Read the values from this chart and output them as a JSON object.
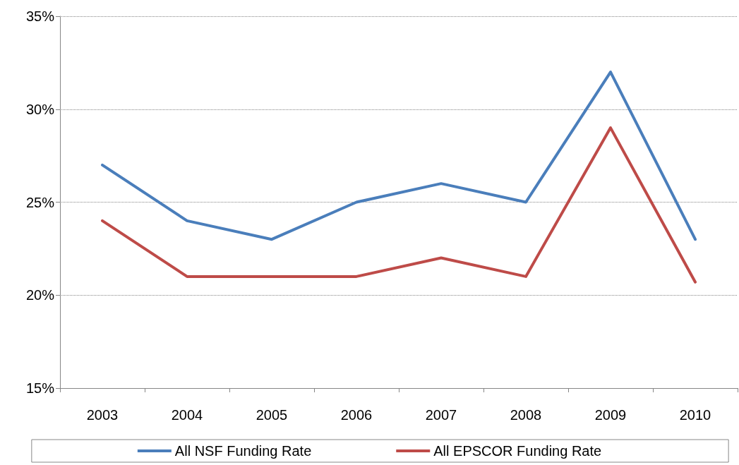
{
  "chart_data": {
    "type": "line",
    "categories": [
      "2003",
      "2004",
      "2005",
      "2006",
      "2007",
      "2008",
      "2009",
      "2010"
    ],
    "series": [
      {
        "name": "All NSF Funding Rate",
        "color": "#4a7ebb",
        "values": [
          27,
          24,
          23,
          25,
          26,
          25,
          32,
          23
        ]
      },
      {
        "name": "All EPSCOR Funding Rate",
        "color": "#be4b48",
        "values": [
          24,
          21,
          21,
          21,
          22,
          21,
          29,
          20.7
        ]
      }
    ],
    "ylim": [
      15,
      35
    ],
    "yticks": [
      {
        "value": 15,
        "label": "15%"
      },
      {
        "value": 20,
        "label": "20%"
      },
      {
        "value": 25,
        "label": "25%"
      },
      {
        "value": 30,
        "label": "30%"
      },
      {
        "value": 35,
        "label": "35%"
      }
    ],
    "grid": "y",
    "legend": "bottom",
    "marker": "none",
    "line_style": "solid"
  }
}
